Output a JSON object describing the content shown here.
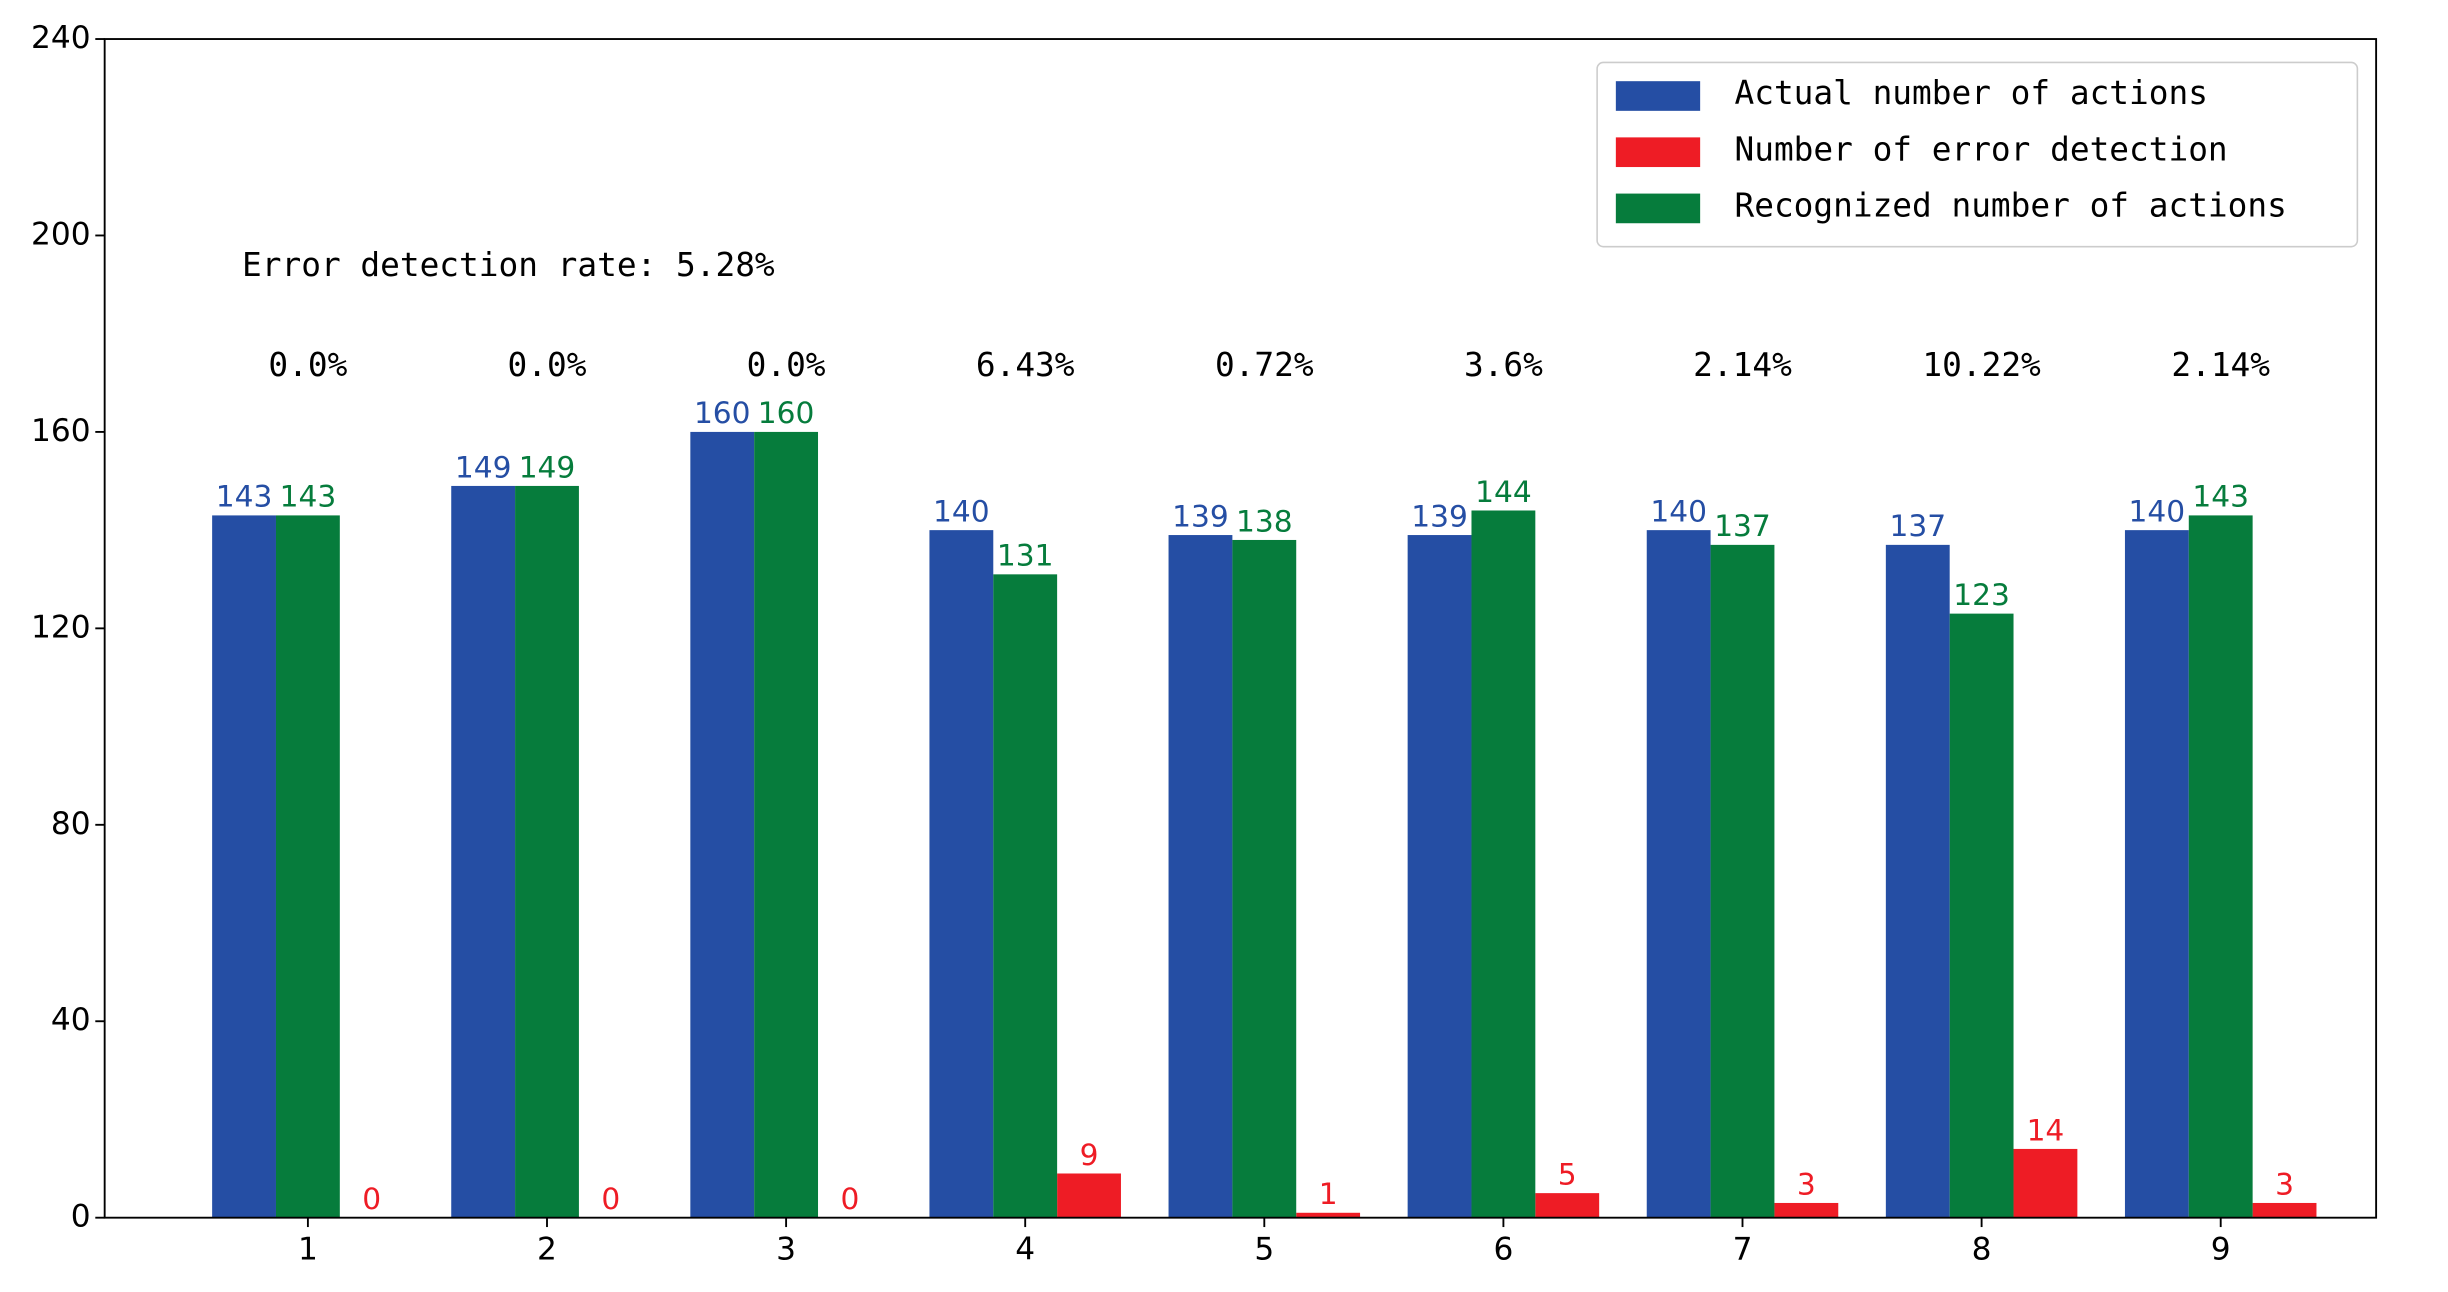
{
  "chart_data": {
    "type": "bar",
    "x": [
      1,
      2,
      3,
      4,
      5,
      6,
      7,
      8,
      9
    ],
    "xlim": [
      0.15,
      9.65
    ],
    "xticks": [
      1,
      2,
      3,
      4,
      5,
      6,
      7,
      8,
      9
    ],
    "ylim": [
      0,
      240
    ],
    "yticks": [
      0,
      40,
      80,
      120,
      160,
      200,
      240
    ],
    "series": [
      {
        "name": "Actual number of actions",
        "color": "#254ea4",
        "values": [
          143,
          149,
          160,
          140,
          139,
          139,
          140,
          137,
          140
        ]
      },
      {
        "name": "Number of error detection",
        "color": "#ee1c25",
        "values": [
          0,
          0,
          0,
          9,
          1,
          5,
          3,
          14,
          3
        ]
      },
      {
        "name": "Recognized number of actions",
        "color": "#067c3c",
        "values": [
          143,
          149,
          160,
          131,
          138,
          144,
          137,
          123,
          143
        ]
      }
    ],
    "group_labels": [
      "0.0%",
      "0.0%",
      "0.0%",
      "6.43%",
      "0.72%",
      "3.6%",
      "2.14%",
      "10.22%",
      "2.14%"
    ],
    "annotation": "Error detection rate: 5.28%",
    "legend": "upper right"
  }
}
